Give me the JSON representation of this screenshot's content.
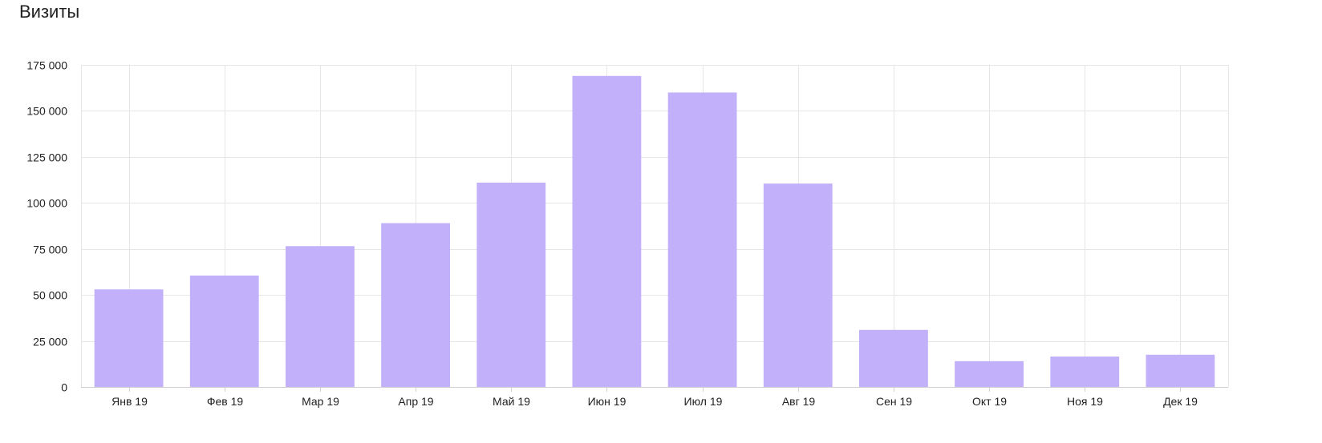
{
  "title": "Визиты",
  "chart_data": {
    "type": "bar",
    "categories": [
      "Янв 19",
      "Фев 19",
      "Мар 19",
      "Апр 19",
      "Май 19",
      "Июн 19",
      "Июл 19",
      "Авг 19",
      "Сен 19",
      "Окт 19",
      "Ноя 19",
      "Дек 19"
    ],
    "values": [
      53000,
      60500,
      76500,
      89000,
      111000,
      169000,
      160000,
      110500,
      31000,
      14000,
      16500,
      17500
    ],
    "ylim": [
      0,
      175000
    ],
    "yticks": [
      0,
      25000,
      50000,
      75000,
      100000,
      125000,
      150000,
      175000
    ],
    "ytick_labels": [
      "0",
      "25 000",
      "50 000",
      "75 000",
      "100 000",
      "125 000",
      "150 000",
      "175 000"
    ],
    "xlabel": "",
    "ylabel": "",
    "grid": true,
    "bar_color": "#c2b0fa",
    "grid_color": "#e6e6e6"
  }
}
